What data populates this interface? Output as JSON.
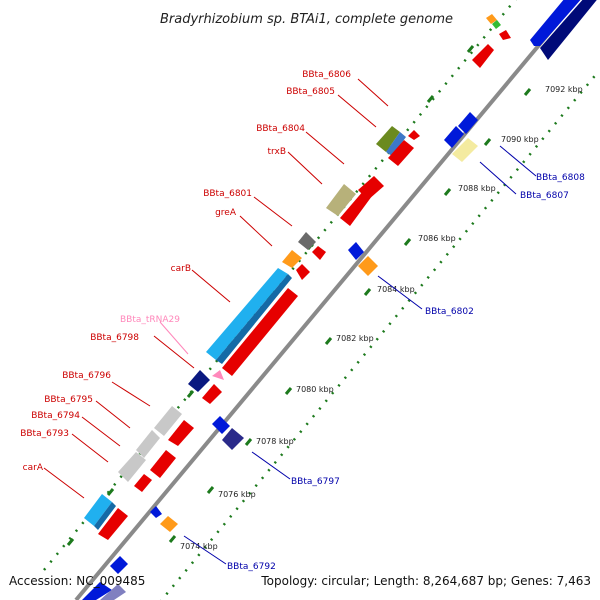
{
  "title": "Bradyrhizobium sp. BTAi1, complete genome",
  "footer": {
    "accession": "Accession: NC_009485",
    "topology": "Topology: circular; Length: 8,264,687 bp; Genes: 7,463"
  },
  "colors": {
    "backbone": "#8c8c8c",
    "tick": "#1d7a1d",
    "forward_label": "#cc0000",
    "reverse_label": "#0000aa",
    "trna_label": "#ff88bb"
  },
  "kbp_labels": [
    "7074 kbp",
    "7076 kbp",
    "7078 kbp",
    "7080 kbp",
    "7082 kbp",
    "7084 kbp",
    "7086 kbp",
    "7088 kbp",
    "7090 kbp",
    "7092 kbp"
  ],
  "forward_labels": [
    {
      "text": "BBta_6806",
      "color": "red"
    },
    {
      "text": "BBta_6805",
      "color": "red"
    },
    {
      "text": "BBta_6804",
      "color": "red"
    },
    {
      "text": "trxB",
      "color": "red"
    },
    {
      "text": "BBta_6801",
      "color": "red"
    },
    {
      "text": "greA",
      "color": "red"
    },
    {
      "text": "carB",
      "color": "red"
    },
    {
      "text": "BBta_tRNA29",
      "color": "pink"
    },
    {
      "text": "BBta_6798",
      "color": "red"
    },
    {
      "text": "BBta_6796",
      "color": "red"
    },
    {
      "text": "BBta_6795",
      "color": "red"
    },
    {
      "text": "BBta_6794",
      "color": "red"
    },
    {
      "text": "BBta_6793",
      "color": "red"
    },
    {
      "text": "carA",
      "color": "red"
    }
  ],
  "reverse_labels": [
    {
      "text": "BBta_6808"
    },
    {
      "text": "BBta_6807"
    },
    {
      "text": "BBta_6802"
    },
    {
      "text": "BBta_6797"
    },
    {
      "text": "BBta_6792"
    }
  ]
}
